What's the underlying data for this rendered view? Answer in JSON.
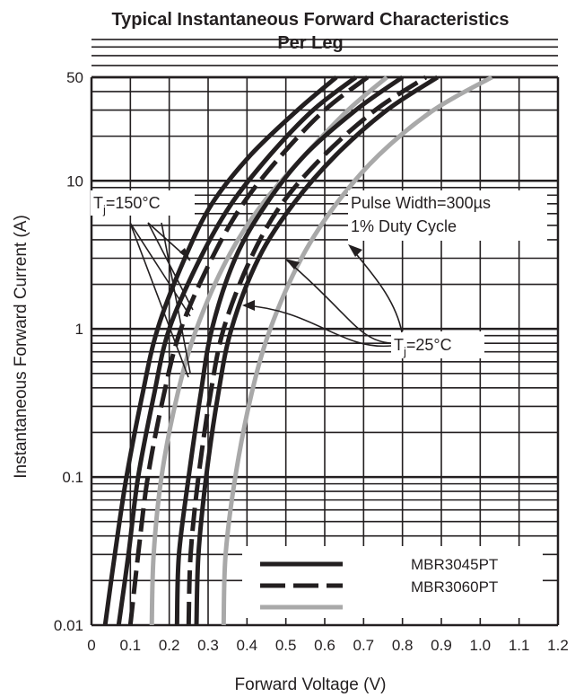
{
  "chart_data": {
    "type": "line",
    "title": "Typical Instantaneous Forward Characteristics",
    "subtitle": "Per Leg",
    "xlabel": "Forward Voltage (V)",
    "ylabel": "Instantaneous Forward Current (A)",
    "xlim": [
      0,
      1.2
    ],
    "ylim": [
      0.01,
      50
    ],
    "yscale": "log",
    "grid": true,
    "x_ticks": [
      "0",
      "0.1",
      "0.2",
      "0.3",
      "0.4",
      "0.5",
      "0.6",
      "0.7",
      "0.8",
      "0.9",
      "1.0",
      "1.1",
      "1.2"
    ],
    "y_ticks": [
      {
        "value": 0.01,
        "label": "0.01"
      },
      {
        "value": 0.1,
        "label": "0.1"
      },
      {
        "value": 1,
        "label": "1"
      },
      {
        "value": 10,
        "label": "10"
      },
      {
        "value": 50,
        "label": "50"
      }
    ],
    "legend": {
      "placement": "bottom-right",
      "entries": [
        {
          "label": "MBR3045PT",
          "style": "solid",
          "color": "#231f20"
        },
        {
          "label": "MBR3060PT",
          "style": "dashed",
          "color": "#231f20"
        },
        {
          "label": "",
          "style": "solid",
          "color": "#a9a9a9"
        }
      ]
    },
    "series": [
      {
        "group": "150C",
        "style": "solid",
        "color": "#231f20",
        "points": [
          [
            0.035,
            0.01
          ],
          [
            0.06,
            0.03
          ],
          [
            0.09,
            0.1
          ],
          [
            0.13,
            0.35
          ],
          [
            0.17,
            1
          ],
          [
            0.24,
            3
          ],
          [
            0.31,
            7
          ],
          [
            0.41,
            15
          ],
          [
            0.53,
            30
          ],
          [
            0.63,
            50
          ]
        ]
      },
      {
        "group": "150C",
        "style": "solid",
        "color": "#231f20",
        "points": [
          [
            0.07,
            0.01
          ],
          [
            0.095,
            0.03
          ],
          [
            0.12,
            0.1
          ],
          [
            0.16,
            0.35
          ],
          [
            0.2,
            1
          ],
          [
            0.28,
            3
          ],
          [
            0.36,
            7
          ],
          [
            0.46,
            15
          ],
          [
            0.57,
            30
          ],
          [
            0.68,
            50
          ]
        ]
      },
      {
        "group": "150C",
        "style": "dashed",
        "color": "#231f20",
        "points": [
          [
            0.1,
            0.01
          ],
          [
            0.12,
            0.03
          ],
          [
            0.145,
            0.1
          ],
          [
            0.185,
            0.35
          ],
          [
            0.23,
            1
          ],
          [
            0.31,
            3
          ],
          [
            0.39,
            7
          ],
          [
            0.49,
            15
          ],
          [
            0.6,
            30
          ],
          [
            0.71,
            50
          ]
        ]
      },
      {
        "group": "150C",
        "style": "solid",
        "color": "#a9a9a9",
        "points": [
          [
            0.155,
            0.01
          ],
          [
            0.16,
            0.03
          ],
          [
            0.18,
            0.1
          ],
          [
            0.22,
            0.35
          ],
          [
            0.27,
            1
          ],
          [
            0.35,
            3
          ],
          [
            0.44,
            7
          ],
          [
            0.55,
            15
          ],
          [
            0.66,
            30
          ],
          [
            0.76,
            50
          ]
        ]
      },
      {
        "group": "25C",
        "style": "solid",
        "color": "#231f20",
        "points": [
          [
            0.22,
            0.01
          ],
          [
            0.225,
            0.03
          ],
          [
            0.25,
            0.1
          ],
          [
            0.28,
            0.35
          ],
          [
            0.31,
            1
          ],
          [
            0.37,
            3
          ],
          [
            0.45,
            7
          ],
          [
            0.55,
            15
          ],
          [
            0.68,
            30
          ],
          [
            0.8,
            50
          ]
        ]
      },
      {
        "group": "25C",
        "style": "dashed",
        "color": "#231f20",
        "points": [
          [
            0.25,
            0.01
          ],
          [
            0.255,
            0.03
          ],
          [
            0.275,
            0.1
          ],
          [
            0.305,
            0.35
          ],
          [
            0.34,
            1
          ],
          [
            0.41,
            3
          ],
          [
            0.49,
            7
          ],
          [
            0.6,
            15
          ],
          [
            0.73,
            30
          ],
          [
            0.86,
            50
          ]
        ]
      },
      {
        "group": "25C",
        "style": "solid",
        "color": "#231f20",
        "points": [
          [
            0.27,
            0.01
          ],
          [
            0.275,
            0.03
          ],
          [
            0.295,
            0.1
          ],
          [
            0.325,
            0.35
          ],
          [
            0.36,
            1
          ],
          [
            0.43,
            3
          ],
          [
            0.52,
            7
          ],
          [
            0.63,
            15
          ],
          [
            0.76,
            30
          ],
          [
            0.89,
            50
          ]
        ]
      },
      {
        "group": "25C",
        "style": "solid",
        "color": "#a9a9a9",
        "points": [
          [
            0.34,
            0.01
          ],
          [
            0.345,
            0.03
          ],
          [
            0.37,
            0.1
          ],
          [
            0.41,
            0.35
          ],
          [
            0.46,
            1
          ],
          [
            0.54,
            3
          ],
          [
            0.63,
            7
          ],
          [
            0.74,
            15
          ],
          [
            0.88,
            30
          ],
          [
            1.03,
            50
          ]
        ]
      }
    ],
    "annotations": {
      "tj150": {
        "text": "=150°C",
        "sub": "j",
        "prefix": "T"
      },
      "tj25": {
        "text": "=25°C",
        "sub": "j",
        "prefix": "T"
      },
      "pulse_width": "Pulse Width=300µs",
      "duty_cycle": "1% Duty Cycle"
    }
  }
}
